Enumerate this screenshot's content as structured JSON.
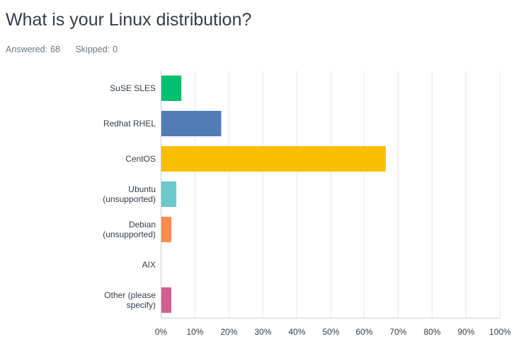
{
  "question": {
    "title": "What is your Linux distribution?",
    "answered_label": "Answered:",
    "answered_value": "68",
    "skipped_label": "Skipped:",
    "skipped_value": "0"
  },
  "chart_data": {
    "type": "bar",
    "orientation": "horizontal",
    "categories": [
      [
        "SuSE SLES"
      ],
      [
        "Redhat RHEL"
      ],
      [
        "CentOS"
      ],
      [
        "Ubuntu",
        "(unsupported)"
      ],
      [
        "Debian",
        "(unsupported)"
      ],
      [
        "AIX"
      ],
      [
        "Other (please",
        "specify)"
      ]
    ],
    "values": [
      5.88,
      17.65,
      66.18,
      4.41,
      2.94,
      0,
      2.94
    ],
    "unit": "%",
    "colors": [
      "#00bf6f",
      "#507cb6",
      "#f9be00",
      "#6bc8cd",
      "#ff8b4f",
      "#7d5ba6",
      "#d25f90"
    ],
    "xlim": [
      0,
      100
    ],
    "xticks": [
      "0%",
      "10%",
      "20%",
      "30%",
      "40%",
      "50%",
      "60%",
      "70%",
      "80%",
      "90%",
      "100%"
    ],
    "grid": true,
    "title": "",
    "xlabel": "",
    "ylabel": ""
  }
}
